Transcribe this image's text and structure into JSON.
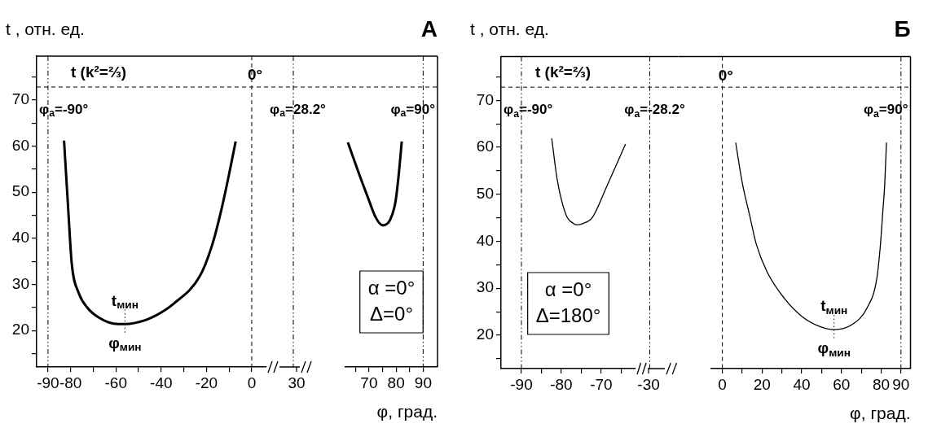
{
  "chart_data": [
    {
      "type": "line",
      "ylabel": "t , отн. ед.",
      "xlim": [
        -95,
        6.5
      ],
      "ylim": [
        12.1,
        79.5
      ],
      "xticks": [
        -90,
        -80,
        {
          "value": -70,
          "label": null
        },
        -60,
        {
          "value": -50,
          "label": null
        },
        -40,
        {
          "value": -30,
          "label": null
        },
        -20,
        {
          "value": -10,
          "label": null
        },
        0
      ],
      "yticks": [
        {
          "value": 15,
          "label": null
        },
        20,
        {
          "value": 25,
          "label": null
        },
        30,
        {
          "value": 35,
          "label": null
        },
        40,
        {
          "value": 45,
          "label": null
        },
        50,
        {
          "value": 55,
          "label": null
        },
        60,
        {
          "value": 65,
          "label": null
        },
        70,
        {
          "value": 75,
          "label": null
        }
      ],
      "series": [
        {
          "color": "#000000",
          "x": [
            -82.9,
            -81,
            -79.5,
            -76.4,
            -72.5,
            -67.5,
            -61,
            -56,
            -52,
            -44.3,
            -34.3,
            -22.8,
            -17.5,
            -13.5,
            -10,
            -7.1
          ],
          "values": [
            61.2,
            45.8,
            34.5,
            28.1,
            24.9,
            22.8,
            21.5,
            21.4,
            21.6,
            22.8,
            25.9,
            31.9,
            38.5,
            46,
            53.9,
            61
          ]
        }
      ],
      "ref_lines": [
        {
          "axis": "y",
          "value": 72.8,
          "label": "t (k²=⅔)",
          "line_style": "dashed"
        },
        {
          "axis": "x",
          "value": -90,
          "label": "φ$_{a}$=-90°",
          "line_style": "dotted"
        },
        {
          "axis": "x",
          "value": 0,
          "label": "0°",
          "line_style": "dashed"
        }
      ],
      "annotations": [
        "t$_{мин}$",
        "φ$_{мин}$"
      ],
      "marker": "none",
      "grid": false,
      "legend": false
    },
    {
      "type": "other",
      "annotations": [
        "30",
        "φ$_{a}$=28.2°"
      ]
    },
    {
      "type": "line",
      "title": "А",
      "xlabel": "φ, град.",
      "xlim": [
        61.3,
        95.3
      ],
      "ylim": [
        12.1,
        79.5
      ],
      "xticks": [
        {
          "value": 65,
          "label": null
        },
        70,
        {
          "value": 75,
          "label": null
        },
        80,
        {
          "value": 85,
          "label": null
        },
        90
      ],
      "tick_labels": "x",
      "series": [
        {
          "color": "#000000",
          "x": [
            62.2,
            66,
            69.5,
            72.5,
            75.1,
            77.8,
            79.8,
            81,
            82.1
          ],
          "values": [
            60.8,
            54.5,
            49,
            44.5,
            42.8,
            44,
            48,
            54,
            61
          ]
        }
      ],
      "ref_lines": [
        {
          "axis": "x",
          "value": 90,
          "label": "φ$_{a}$=90°",
          "line_style": "dotted"
        }
      ],
      "annotations": [
        "α =0°",
        "Δ=0°"
      ],
      "marker": "none",
      "grid": false,
      "legend": false
    },
    {
      "type": "line",
      "ylabel": "t , отн. ед.",
      "xlim": [
        -95.1,
        -61.4
      ],
      "ylim": [
        12.9,
        79.3
      ],
      "xticks": [
        -90,
        {
          "value": -85,
          "label": null
        },
        -80,
        {
          "value": -75,
          "label": null
        },
        -70,
        {
          "value": -65,
          "label": null
        }
      ],
      "yticks": [
        {
          "value": 15,
          "label": null
        },
        20,
        {
          "value": 25,
          "label": null
        },
        30,
        {
          "value": 35,
          "label": null
        },
        40,
        {
          "value": 45,
          "label": null
        },
        50,
        {
          "value": 55,
          "label": null
        },
        60,
        {
          "value": 65,
          "label": null
        },
        70,
        {
          "value": 75,
          "label": null
        }
      ],
      "series": [
        {
          "color": "#000000",
          "x": [
            -82.4,
            -81,
            -78.8,
            -77,
            -76,
            -74.5,
            -72.2,
            -68.6,
            -63.9
          ],
          "values": [
            61.9,
            53,
            45.6,
            43.8,
            43.5,
            43.8,
            45.1,
            51.7,
            60.7
          ]
        }
      ],
      "ref_lines": [
        {
          "axis": "y",
          "value": 72.8,
          "label": "t (k²=⅔)",
          "line_style": "dashed"
        },
        {
          "axis": "x",
          "value": -90,
          "label": "φ$_{a}$=-90°",
          "line_style": "dotted"
        }
      ],
      "annotations": [
        "α =0°",
        "Δ=180°"
      ],
      "marker": "none",
      "grid": false,
      "legend": false
    },
    {
      "type": "other",
      "annotations": [
        "-30",
        "φ$_{a}$=-28.2°"
      ]
    },
    {
      "type": "line",
      "title": "Б",
      "xlabel": "φ, град.",
      "xlim": [
        -5.8,
        94.8
      ],
      "ylim": [
        12.9,
        79.3
      ],
      "xticks": [
        0,
        {
          "value": 10,
          "label": null
        },
        20,
        {
          "value": 30,
          "label": null
        },
        40,
        {
          "value": 50,
          "label": null
        },
        60,
        {
          "value": 70,
          "label": null
        },
        80,
        90
      ],
      "tick_labels": "x",
      "series": [
        {
          "color": "#000000",
          "x": [
            6.7,
            10,
            13.7,
            17,
            22.5,
            31.3,
            40.1,
            48.9,
            56.3,
            65.1,
            72.9,
            77.8,
            79.6,
            80.8,
            81.8,
            82.7
          ],
          "values": [
            61,
            52.5,
            45.6,
            39.5,
            33.5,
            27.8,
            24,
            21.9,
            21.2,
            22.2,
            25.8,
            32,
            39,
            46,
            52,
            61
          ]
        }
      ],
      "ref_lines": [
        {
          "axis": "x",
          "value": 0,
          "label": "0°",
          "line_style": "dashed"
        },
        {
          "axis": "x",
          "value": 90,
          "label": "φ$_{a}$=90°",
          "line_style": "dotted"
        }
      ],
      "annotations": [
        "t$_{мин}$",
        "φ$_{мин}$"
      ],
      "marker": "none",
      "grid": false,
      "legend": false
    }
  ]
}
